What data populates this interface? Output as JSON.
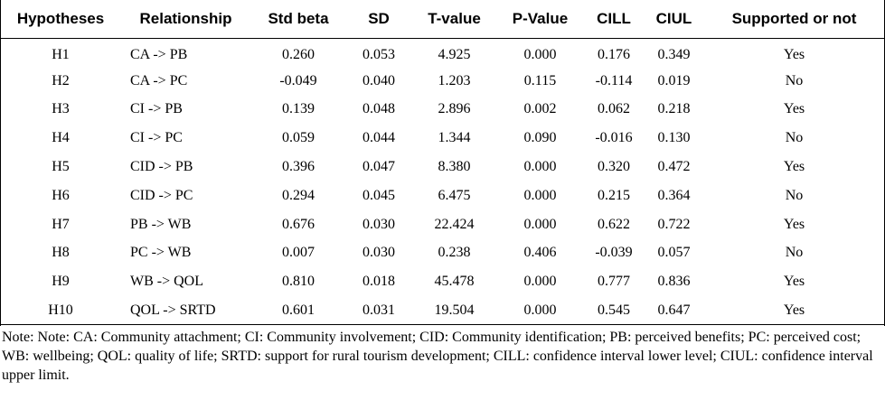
{
  "table": {
    "headers": [
      "Hypotheses",
      "Relationship",
      "Std beta",
      "SD",
      "T-value",
      "P-Value",
      "CILL",
      "CIUL",
      "Supported or not"
    ],
    "rows": [
      [
        "H1",
        "CA -> PB",
        "0.260",
        "0.053",
        "4.925",
        "0.000",
        "0.176",
        "0.349",
        "Yes"
      ],
      [
        "H2",
        "CA -> PC",
        "-0.049",
        "0.040",
        "1.203",
        "0.115",
        "-0.114",
        "0.019",
        "No"
      ],
      [
        "H3",
        "CI -> PB",
        "0.139",
        "0.048",
        "2.896",
        "0.002",
        "0.062",
        "0.218",
        "Yes"
      ],
      [
        "H4",
        "CI -> PC",
        "0.059",
        "0.044",
        "1.344",
        "0.090",
        "-0.016",
        "0.130",
        "No"
      ],
      [
        "H5",
        "CID -> PB",
        "0.396",
        "0.047",
        "8.380",
        "0.000",
        "0.320",
        "0.472",
        "Yes"
      ],
      [
        "H6",
        "CID -> PC",
        "0.294",
        "0.045",
        "6.475",
        "0.000",
        "0.215",
        "0.364",
        "No"
      ],
      [
        "H7",
        "PB -> WB",
        "0.676",
        "0.030",
        "22.424",
        "0.000",
        "0.622",
        "0.722",
        "Yes"
      ],
      [
        "H8",
        "PC -> WB",
        "0.007",
        "0.030",
        "0.238",
        "0.406",
        "-0.039",
        "0.057",
        "No"
      ],
      [
        "H9",
        "WB -> QOL",
        "0.810",
        "0.018",
        "45.478",
        "0.000",
        "0.777",
        "0.836",
        "Yes"
      ],
      [
        "H10",
        "QOL -> SRTD",
        "0.601",
        "0.031",
        "19.504",
        "0.000",
        "0.545",
        "0.647",
        "Yes"
      ]
    ]
  },
  "note": "Note: Note: CA: Community attachment; CI: Community involvement; CID: Community identification; PB: perceived benefits; PC: perceived cost; WB: wellbeing; QOL: quality of life; SRTD: support for rural tourism development; CILL: confidence interval lower level; CIUL: confidence interval upper limit."
}
